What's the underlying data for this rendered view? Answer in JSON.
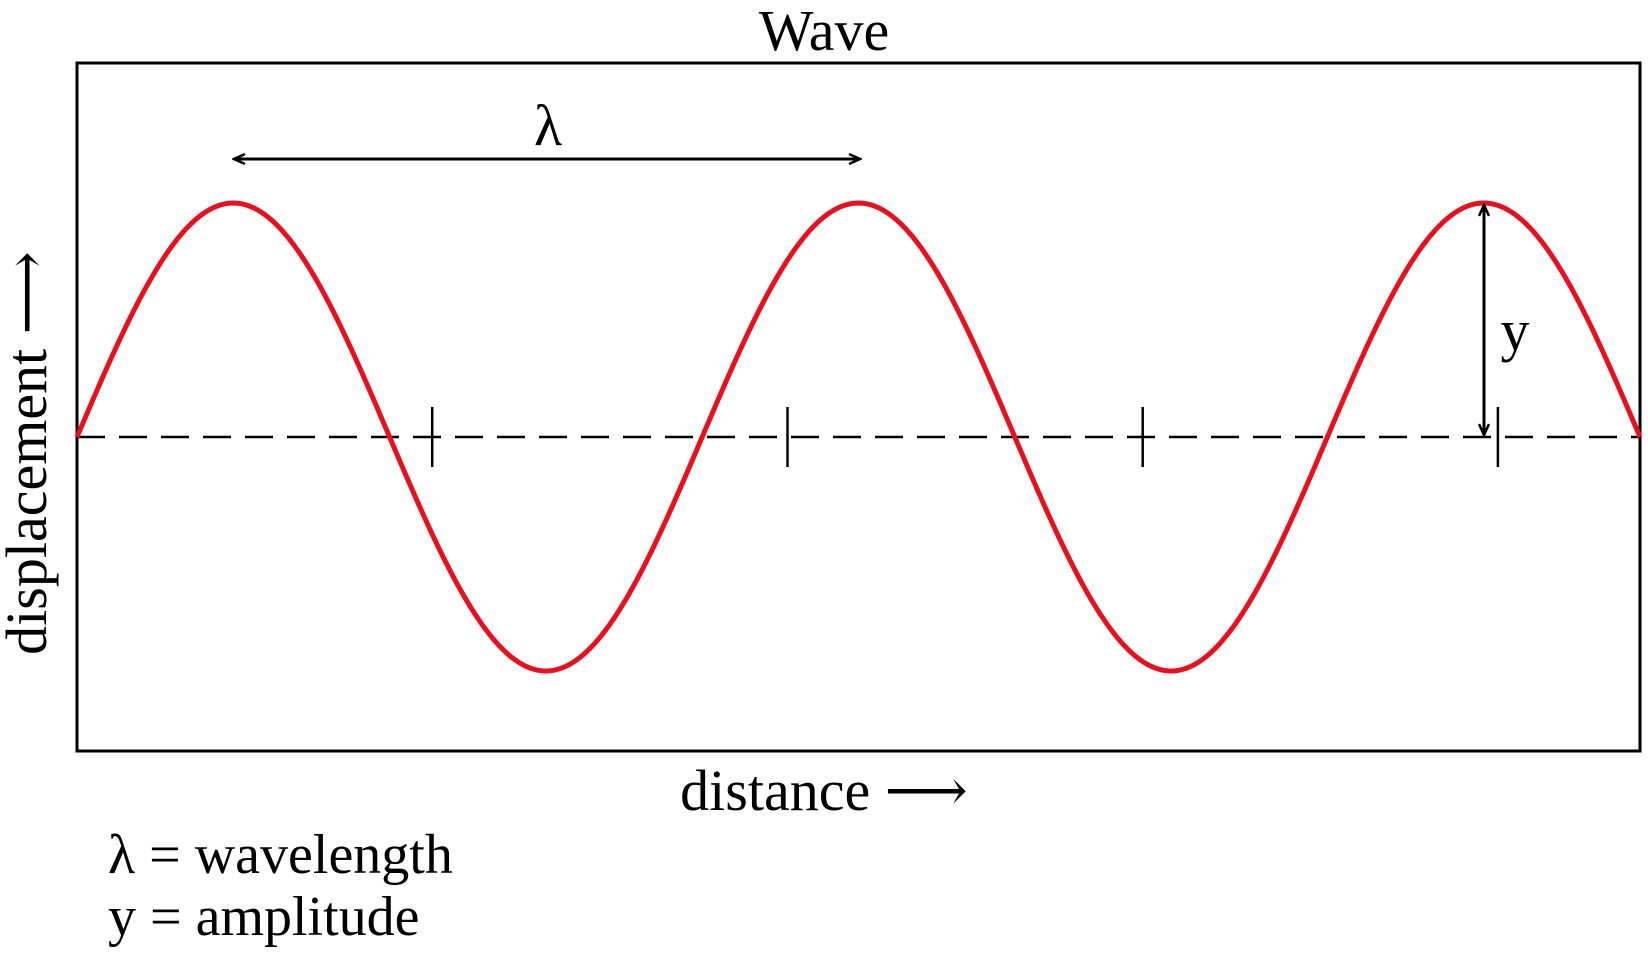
{
  "title": "Wave",
  "xlabel": "distance ⟶",
  "ylabel": "displacement ⟶",
  "annotations": {
    "wavelength_symbol": "λ",
    "amplitude_symbol": "y"
  },
  "legend": [
    {
      "text": "λ = wavelength"
    },
    {
      "text": "y = amplitude"
    }
  ],
  "colors": {
    "wave": "#e8101e",
    "frame": "#000000",
    "axis": "#000000"
  },
  "wave": {
    "cycles": 2.5,
    "shape": "sine",
    "axis_style": "dashed",
    "axis_tick_count": 4
  }
}
